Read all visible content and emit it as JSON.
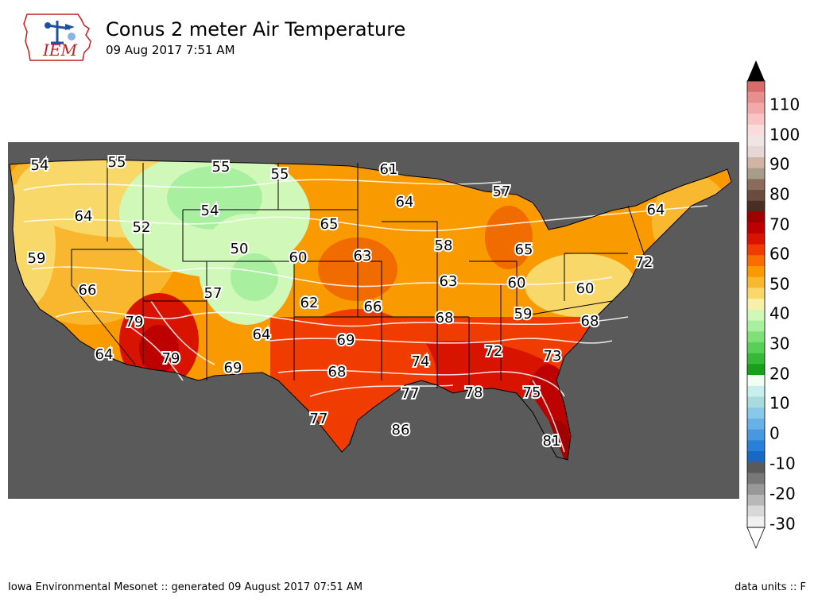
{
  "header": {
    "title": "Conus 2 meter Air Temperature",
    "subtitle": "09 Aug 2017 7:51 AM",
    "logo_text": "IEM"
  },
  "footer": {
    "left": "Iowa Environmental Mesonet :: generated 09 August 2017 07:51 AM",
    "right": "data units :: F"
  },
  "colorbar": {
    "tick_labels": [
      "110",
      "100",
      "90",
      "80",
      "70",
      "60",
      "50",
      "40",
      "30",
      "20",
      "10",
      "0",
      "-10",
      "-20",
      "-30"
    ],
    "colors_top_to_bottom": [
      "#d96b6b",
      "#e88e8e",
      "#f3a9a9",
      "#f8c4c4",
      "#fbdcdc",
      "#f0e4e4",
      "#e6d6d6",
      "#d2b4a4",
      "#a89c8a",
      "#8a6b5c",
      "#6a4c3e",
      "#4a2e24",
      "#a00000",
      "#bd0000",
      "#d81400",
      "#f03c00",
      "#f86c00",
      "#f89a00",
      "#f8b830",
      "#f8d868",
      "#f8f0a8",
      "#d0f8b8",
      "#a8f0a0",
      "#80e078",
      "#58d058",
      "#38b838",
      "#18a018",
      "#f0fff0",
      "#c8eeee",
      "#a8dcdc",
      "#88c8e8",
      "#68b0e8",
      "#4898e0",
      "#2880d8",
      "#1868c8",
      "#5a5a5a",
      "#787878",
      "#989898",
      "#b8b8b8",
      "#d8d8d8",
      "#f0f0f0"
    ]
  },
  "map": {
    "background_color": "#5a5a5a",
    "labels": [
      {
        "text": "54"
      },
      {
        "text": "55"
      },
      {
        "text": "55"
      },
      {
        "text": "55"
      },
      {
        "text": "61"
      },
      {
        "text": "64"
      },
      {
        "text": "54"
      },
      {
        "text": "52"
      },
      {
        "text": "65"
      },
      {
        "text": "64"
      },
      {
        "text": "57"
      },
      {
        "text": "64"
      },
      {
        "text": "59"
      },
      {
        "text": "50"
      },
      {
        "text": "60"
      },
      {
        "text": "63"
      },
      {
        "text": "58"
      },
      {
        "text": "65"
      },
      {
        "text": "72"
      },
      {
        "text": "66"
      },
      {
        "text": "57"
      },
      {
        "text": "62"
      },
      {
        "text": "66"
      },
      {
        "text": "63"
      },
      {
        "text": "60"
      },
      {
        "text": "60"
      },
      {
        "text": "79"
      },
      {
        "text": "64"
      },
      {
        "text": "68"
      },
      {
        "text": "59"
      },
      {
        "text": "68"
      },
      {
        "text": "69"
      },
      {
        "text": "72"
      },
      {
        "text": "73"
      },
      {
        "text": "64"
      },
      {
        "text": "79"
      },
      {
        "text": "69"
      },
      {
        "text": "74"
      },
      {
        "text": "68"
      },
      {
        "text": "77"
      },
      {
        "text": "78"
      },
      {
        "text": "75"
      },
      {
        "text": "77"
      },
      {
        "text": "86"
      },
      {
        "text": "81"
      }
    ]
  }
}
